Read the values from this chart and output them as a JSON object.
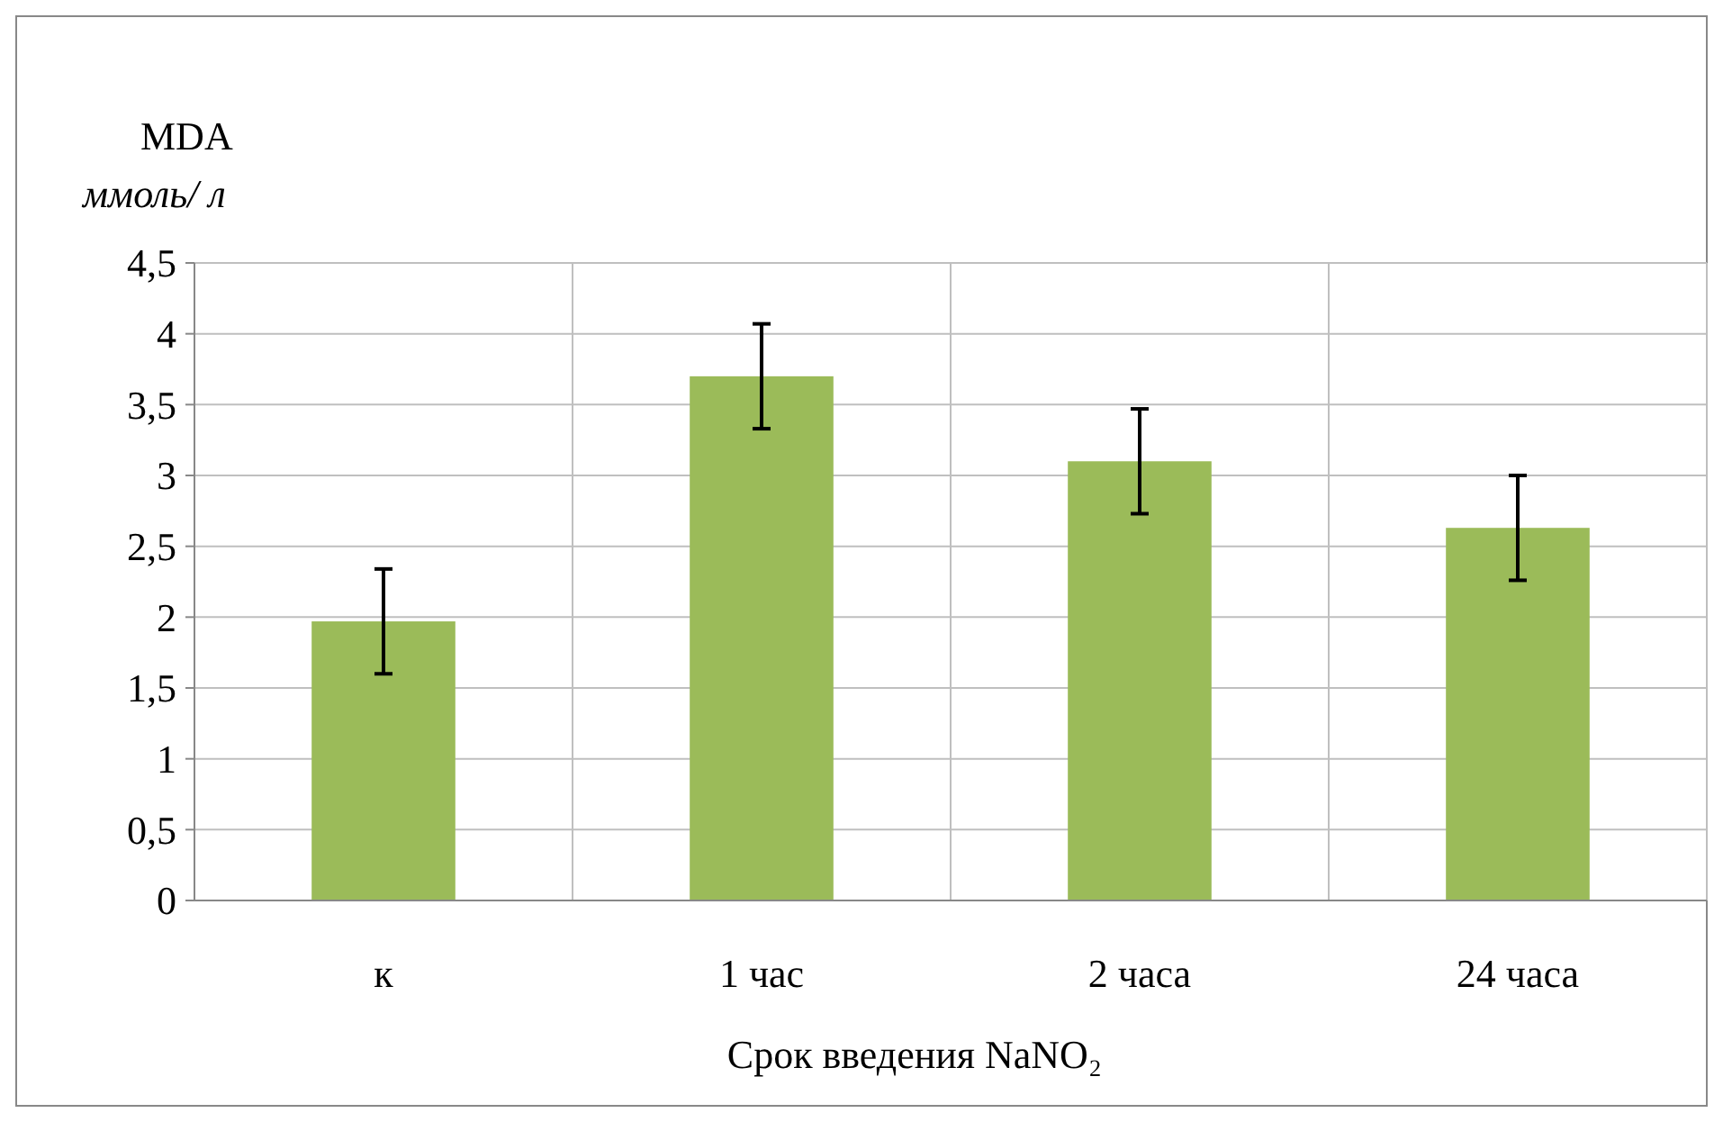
{
  "chart_data": {
    "type": "bar",
    "xlabel": "Срок введения NaNO₂",
    "ylabel": "MDA\nммоль/ л",
    "categories": [
      "к",
      "1 час",
      "2 часа",
      "24 часа"
    ],
    "values": [
      1.97,
      3.7,
      3.1,
      2.63
    ],
    "color": "#9bbb59",
    "errors": [
      0.37,
      0.37,
      0.37,
      0.37
    ],
    "ylim": [
      0,
      4.5
    ],
    "yticks": [
      0,
      {
        "value": 0.5,
        "label": "0,5"
      },
      1,
      {
        "value": 1.5,
        "label": "1,5"
      },
      2,
      {
        "value": 2.5,
        "label": "2,5"
      },
      3,
      {
        "value": 3.5,
        "label": "3,5"
      },
      4,
      {
        "value": 4.5,
        "label": "4,5"
      }
    ],
    "grid": true
  }
}
